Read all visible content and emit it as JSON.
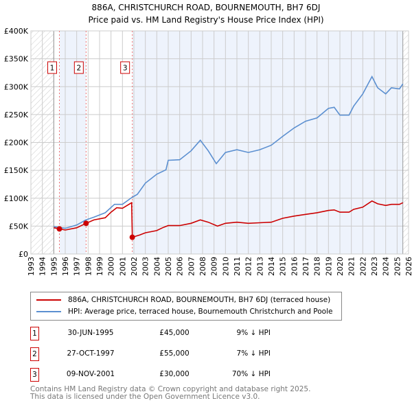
{
  "title": "886A, CHRISTCHURCH ROAD, BOURNEMOUTH, BH7 6DJ",
  "subtitle": "Price paid vs. HM Land Registry's House Price Index (HPI)",
  "chart_data": {
    "type": "line",
    "xlim": [
      1993,
      2026
    ],
    "ylim": [
      0,
      400000
    ],
    "x_ticks": [
      1993,
      1994,
      1995,
      1996,
      1997,
      1998,
      1999,
      2000,
      2001,
      2002,
      2003,
      2004,
      2005,
      2006,
      2007,
      2008,
      2009,
      2010,
      2011,
      2012,
      2013,
      2014,
      2015,
      2016,
      2017,
      2018,
      2019,
      2020,
      2021,
      2022,
      2023,
      2024,
      2025,
      2026
    ],
    "y_ticks": [
      {
        "v": 0,
        "label": "£0"
      },
      {
        "v": 50000,
        "label": "£50K"
      },
      {
        "v": 100000,
        "label": "£100K"
      },
      {
        "v": 150000,
        "label": "£150K"
      },
      {
        "v": 200000,
        "label": "£200K"
      },
      {
        "v": 250000,
        "label": "£250K"
      },
      {
        "v": 300000,
        "label": "£300K"
      },
      {
        "v": 350000,
        "label": "£350K"
      },
      {
        "v": 400000,
        "label": "£400K"
      }
    ],
    "grid": true,
    "data_range": [
      1995,
      2025.5
    ],
    "series": [
      {
        "name": "886A, CHRISTCHURCH ROAD, BOURNEMOUTH, BH7 6DJ (terraced house)",
        "color": "#cc0000",
        "x": [
          1995,
          1995.5,
          1996,
          1997,
          1997.82,
          1998.5,
          1999.5,
          2000,
          2000.5,
          2001,
          2001.8,
          2001.86,
          2002.5,
          2003,
          2004,
          2004.5,
          2005,
          2006,
          2007,
          2007.8,
          2008.5,
          2009.3,
          2010,
          2011,
          2012,
          2013,
          2014,
          2015,
          2016,
          2017,
          2018,
          2019,
          2019.5,
          2020,
          2020.8,
          2021.2,
          2022,
          2022.8,
          2023.3,
          2024,
          2024.5,
          2025.2,
          2025.5
        ],
        "y": [
          47000,
          45000,
          43000,
          47000,
          55000,
          61000,
          65000,
          75000,
          83000,
          82000,
          92000,
          30000,
          34000,
          38000,
          42000,
          47000,
          51000,
          51000,
          55000,
          61000,
          57000,
          50000,
          55000,
          57000,
          55000,
          56000,
          57000,
          64000,
          68000,
          71000,
          74000,
          78000,
          79000,
          75000,
          75000,
          80000,
          84000,
          95000,
          90000,
          87000,
          89000,
          89000,
          92000
        ]
      },
      {
        "name": "HPI: Average price, terraced house, Bournemouth Christchurch and Poole",
        "color": "#5b8fd0",
        "x": [
          1995,
          1996,
          1997,
          1997.8,
          1998.5,
          1999.5,
          2000.3,
          2001,
          2001.8,
          2002.3,
          2003,
          2004,
          2004.8,
          2005,
          2006,
          2007,
          2007.8,
          2008.5,
          2009.2,
          2010,
          2011,
          2012,
          2013,
          2014,
          2015,
          2016,
          2017,
          2018,
          2019,
          2019.5,
          2020,
          2020.8,
          2021.2,
          2022,
          2022.8,
          2023.3,
          2024,
          2024.5,
          2025.2,
          2025.5
        ],
        "y": [
          49000,
          46000,
          52000,
          61000,
          66000,
          74000,
          89000,
          89000,
          101000,
          107000,
          127000,
          143000,
          151000,
          168000,
          169000,
          185000,
          204000,
          185000,
          162000,
          182000,
          187000,
          182000,
          187000,
          195000,
          211000,
          226000,
          238000,
          244000,
          261000,
          263000,
          249000,
          249000,
          265000,
          287000,
          318000,
          298000,
          287000,
          298000,
          296000,
          305000
        ]
      }
    ],
    "sales": [
      {
        "n": "1",
        "date": "30-JUN-1995",
        "x": 1995.49,
        "price": 45000,
        "price_label": "£45,000",
        "hpi": "9% ↓ HPI"
      },
      {
        "n": "2",
        "date": "27-OCT-1997",
        "x": 1997.82,
        "price": 55000,
        "price_label": "£55,000",
        "hpi": "7% ↓ HPI"
      },
      {
        "n": "3",
        "date": "09-NOV-2001",
        "x": 2001.86,
        "price": 30000,
        "price_label": "£30,000",
        "hpi": "70% ↓ HPI"
      }
    ]
  },
  "legend": {
    "property": "886A, CHRISTCHURCH ROAD, BOURNEMOUTH, BH7 6DJ (terraced house)",
    "hpi": "HPI: Average price, terraced house, Bournemouth Christchurch and Poole"
  },
  "footer": {
    "line1": "Contains HM Land Registry data © Crown copyright and database right 2025.",
    "line2": "This data is licensed under the Open Government Licence v3.0."
  }
}
